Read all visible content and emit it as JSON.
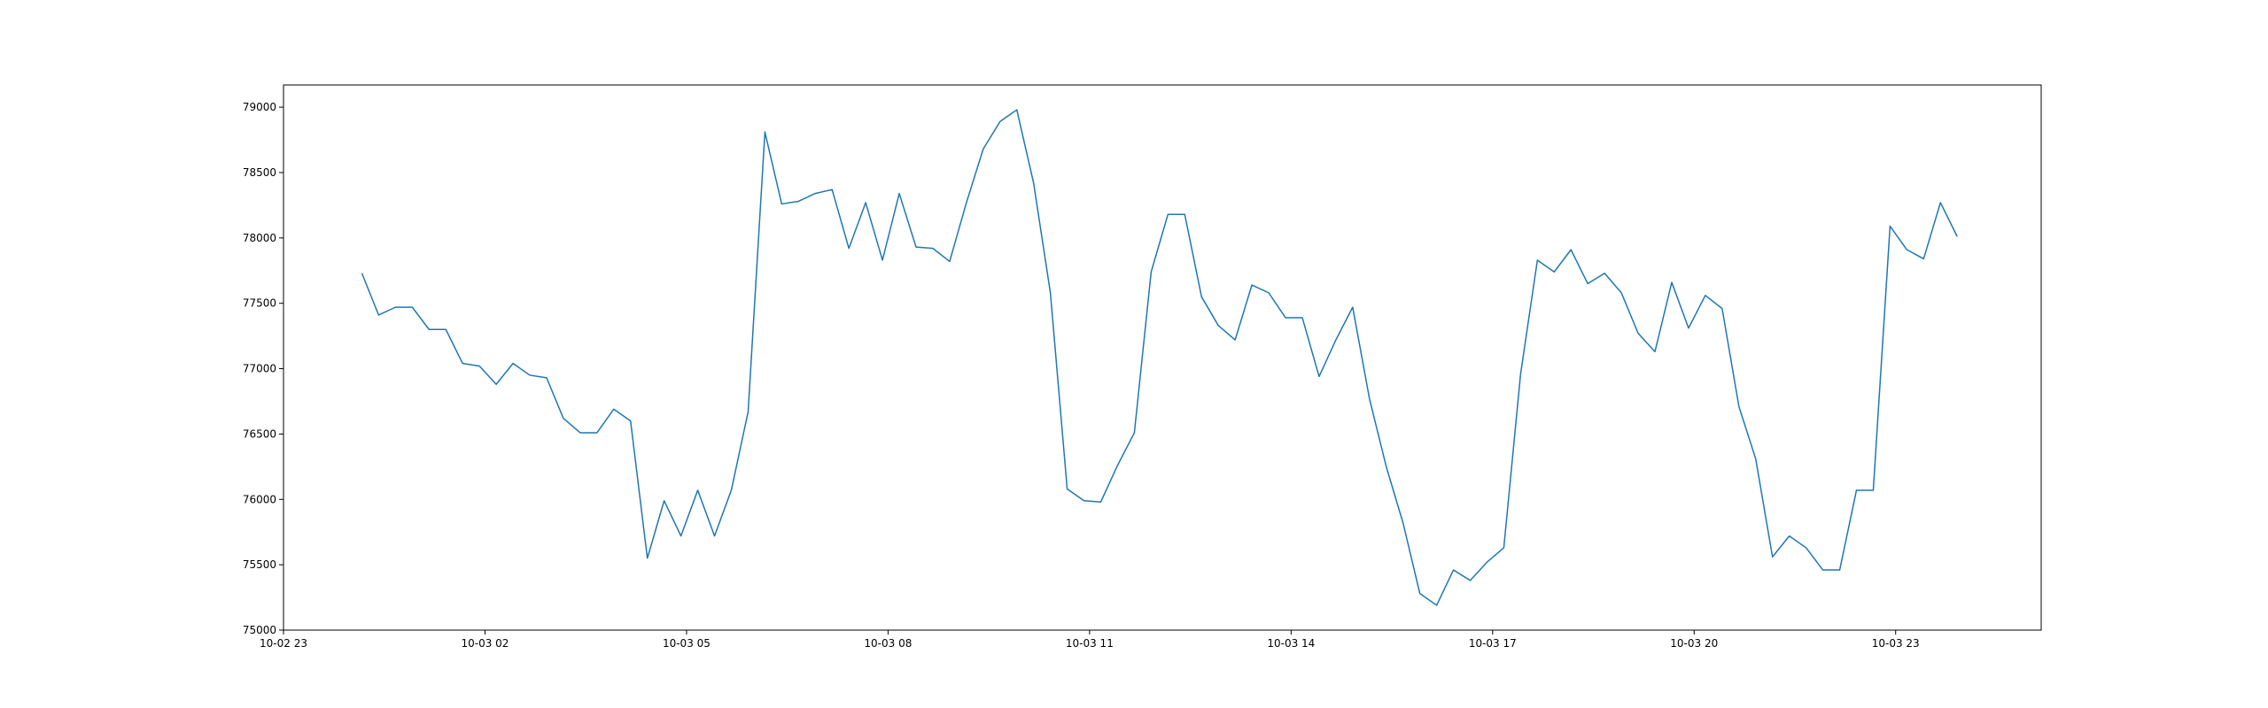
{
  "chart_data": {
    "type": "line",
    "title": "",
    "xlabel": "",
    "ylabel": "",
    "xlim": [
      "2023-10-02 23:00",
      "2023-10-04 01:10"
    ],
    "ylim": [
      75000,
      79170
    ],
    "x_tick_labels": [
      "10-02 23",
      "10-03 02",
      "10-03 05",
      "10-03 08",
      "10-03 11",
      "10-03 14",
      "10-03 17",
      "10-03 20",
      "10-03 23"
    ],
    "x_ticks": [
      "2023-10-02 23:00",
      "2023-10-03 02:00",
      "2023-10-03 05:00",
      "2023-10-03 08:00",
      "2023-10-03 11:00",
      "2023-10-03 14:00",
      "2023-10-03 17:00",
      "2023-10-03 20:00",
      "2023-10-03 23:00"
    ],
    "y_ticks": [
      75000,
      75500,
      76000,
      76500,
      77000,
      77500,
      78000,
      78500,
      79000
    ],
    "y_tick_labels": [
      "75000",
      "75500",
      "76000",
      "76500",
      "77000",
      "77500",
      "78000",
      "78500",
      "79000"
    ],
    "grid": false,
    "series": [
      {
        "color": "#1f77b4",
        "x_start": "2023-10-03 00:10",
        "x_step_minutes": 15,
        "values": [
          77730,
          77410,
          77470,
          77470,
          77300,
          77300,
          77040,
          77020,
          76880,
          77040,
          76950,
          76930,
          76620,
          76510,
          76510,
          76690,
          76600,
          75550,
          75990,
          75720,
          76070,
          75720,
          76070,
          76670,
          78810,
          78260,
          78280,
          78340,
          78370,
          77920,
          78270,
          77830,
          78340,
          77930,
          77920,
          77820,
          78270,
          78680,
          78890,
          78980,
          78420,
          77580,
          76080,
          75990,
          75980,
          76260,
          76510,
          77740,
          78180,
          78180,
          77550,
          77330,
          77220,
          77640,
          77580,
          77390,
          77390,
          76940,
          77220,
          77470,
          76770,
          76250,
          75820,
          75280,
          75190,
          75460,
          75380,
          75520,
          75630,
          76960,
          77830,
          77740,
          77910,
          77650,
          77730,
          77580,
          77270,
          77130,
          77660,
          77310,
          77560,
          77460,
          76710,
          76310,
          75560,
          75720,
          75630,
          75460,
          75460,
          76070,
          76070,
          78090,
          77910,
          77840,
          78270,
          78010
        ]
      }
    ]
  }
}
